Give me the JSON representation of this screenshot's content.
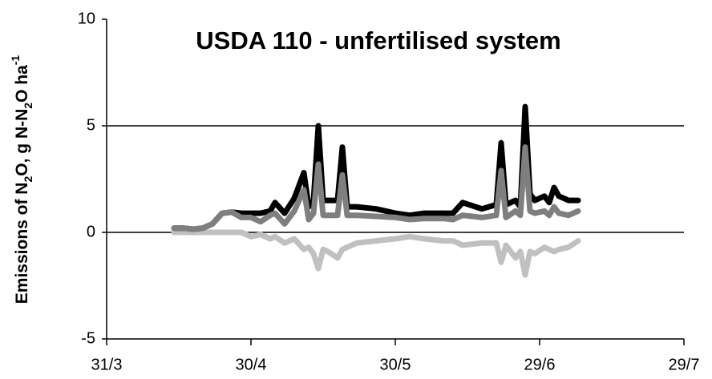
{
  "chart_data": {
    "type": "line",
    "title": "USDA 110 - unfertilised system",
    "y_label": [
      "Emissions of N",
      "2",
      "O, g N-N",
      "2",
      "O ha",
      "-1"
    ],
    "x": [
      14,
      16,
      18,
      20,
      22,
      24,
      26,
      28,
      30,
      32,
      34,
      35,
      37,
      39,
      41,
      42,
      43,
      44,
      45,
      46,
      48,
      49,
      50,
      52,
      56,
      60,
      63,
      66,
      70,
      72,
      74,
      78,
      81,
      82,
      83,
      85,
      86,
      87,
      88,
      89,
      91,
      92,
      93,
      94,
      96,
      98
    ],
    "xlim": [
      0,
      120
    ],
    "xticks": [
      {
        "value": 0,
        "label": "31/3"
      },
      {
        "value": 30,
        "label": "30/4"
      },
      {
        "value": 60,
        "label": "30/5"
      },
      {
        "value": 90,
        "label": "29/6"
      },
      {
        "value": 120,
        "label": "29/7"
      }
    ],
    "ylim": [
      -5,
      10
    ],
    "yticks": [
      -5,
      0,
      5,
      10
    ],
    "grid": true,
    "series": [
      {
        "color": "#c0c0c0",
        "values": [
          0,
          0,
          0,
          0,
          0,
          0,
          0,
          0,
          -0.2,
          -0.1,
          -0.3,
          -0.2,
          -0.5,
          -0.3,
          -0.8,
          -0.7,
          -1.0,
          -1.7,
          -0.8,
          -0.9,
          -1.2,
          -0.8,
          -0.7,
          -0.5,
          -0.4,
          -0.3,
          -0.2,
          -0.3,
          -0.4,
          -0.4,
          -0.6,
          -0.5,
          -0.5,
          -1.4,
          -0.6,
          -1.2,
          -0.9,
          -2.0,
          -0.9,
          -1.0,
          -0.7,
          -0.8,
          -0.9,
          -0.8,
          -0.7,
          -0.4
        ]
      },
      {
        "color": "#000000",
        "values": [
          0.2,
          0.2,
          0.15,
          0.2,
          0.4,
          0.9,
          0.95,
          0.9,
          0.9,
          0.9,
          1.0,
          1.4,
          0.9,
          1.6,
          2.8,
          1.2,
          1.5,
          5.0,
          1.5,
          1.5,
          1.5,
          4.0,
          1.2,
          1.2,
          1.1,
          0.9,
          0.8,
          0.9,
          0.9,
          0.9,
          1.4,
          1.1,
          1.3,
          4.2,
          1.3,
          1.5,
          1.2,
          5.9,
          1.8,
          1.5,
          1.7,
          1.4,
          2.1,
          1.7,
          1.5,
          1.5
        ]
      },
      {
        "color": "#7f7f7f",
        "values": [
          0.2,
          0.2,
          0.15,
          0.2,
          0.4,
          0.9,
          0.95,
          0.7,
          0.7,
          0.5,
          0.8,
          0.9,
          0.4,
          1.0,
          2.0,
          0.6,
          0.9,
          3.2,
          0.8,
          0.8,
          0.8,
          2.7,
          0.8,
          0.8,
          0.75,
          0.7,
          0.6,
          0.65,
          0.65,
          0.6,
          0.8,
          0.7,
          0.8,
          2.9,
          0.7,
          1.0,
          0.8,
          4.0,
          1.0,
          0.9,
          1.0,
          0.8,
          1.2,
          0.9,
          0.8,
          1.0
        ]
      }
    ]
  }
}
